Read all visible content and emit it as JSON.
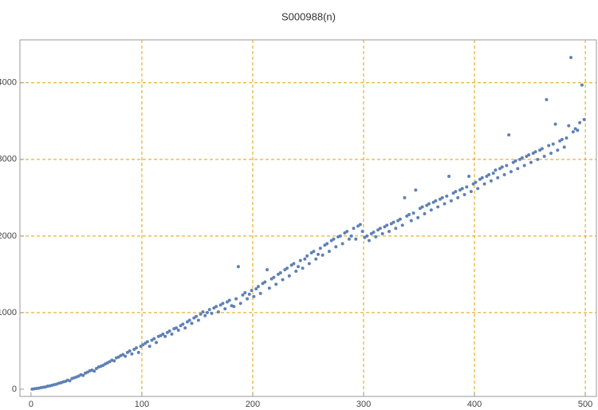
{
  "chart_data": {
    "type": "scatter",
    "title": "S000988(n)",
    "color": "#5e81b5",
    "grid": true,
    "grid_color": "#e69f00",
    "xlim": [
      -10,
      510
    ],
    "ylim": [
      -94,
      4560
    ],
    "xticks": [
      0,
      100,
      200,
      300,
      400,
      500
    ],
    "yticks": [
      0,
      1000,
      2000,
      3000,
      4000
    ],
    "x": [
      1,
      3,
      5,
      7,
      9,
      11,
      13,
      15,
      17,
      19,
      21,
      23,
      25,
      27,
      29,
      31,
      33,
      35,
      37,
      39,
      41,
      43,
      45,
      47,
      49,
      51,
      53,
      55,
      57,
      59,
      61,
      63,
      65,
      67,
      69,
      71,
      73,
      75,
      77,
      79,
      81,
      83,
      85,
      87,
      89,
      91,
      93,
      95,
      97,
      99,
      101,
      103,
      105,
      107,
      109,
      111,
      113,
      115,
      117,
      119,
      121,
      123,
      125,
      127,
      129,
      131,
      133,
      135,
      137,
      139,
      141,
      143,
      145,
      147,
      149,
      151,
      153,
      155,
      157,
      159,
      161,
      163,
      165,
      167,
      169,
      171,
      173,
      175,
      177,
      179,
      181,
      183,
      185,
      187,
      189,
      191,
      193,
      195,
      197,
      199,
      201,
      203,
      205,
      207,
      209,
      211,
      213,
      215,
      217,
      219,
      221,
      223,
      225,
      227,
      229,
      231,
      233,
      235,
      237,
      239,
      241,
      243,
      245,
      247,
      249,
      251,
      253,
      255,
      257,
      259,
      261,
      263,
      265,
      267,
      269,
      271,
      273,
      275,
      277,
      279,
      281,
      283,
      285,
      287,
      289,
      291,
      293,
      295,
      297,
      299,
      301,
      303,
      305,
      307,
      309,
      311,
      313,
      315,
      317,
      319,
      321,
      323,
      325,
      327,
      329,
      331,
      333,
      335,
      337,
      339,
      341,
      343,
      345,
      347,
      349,
      351,
      353,
      355,
      357,
      359,
      361,
      363,
      365,
      367,
      369,
      371,
      373,
      375,
      377,
      379,
      381,
      383,
      385,
      387,
      389,
      391,
      393,
      395,
      397,
      399,
      401,
      403,
      405,
      407,
      409,
      411,
      413,
      415,
      417,
      419,
      421,
      423,
      425,
      427,
      429,
      431,
      433,
      435,
      437,
      439,
      441,
      443,
      445,
      447,
      449,
      451,
      453,
      455,
      457,
      459,
      461,
      463,
      465,
      467,
      469,
      471,
      473,
      475,
      477,
      479,
      481,
      483,
      485,
      487,
      489,
      491,
      493,
      495,
      497,
      499
    ],
    "values": [
      1,
      6,
      10,
      14,
      20,
      26,
      30,
      40,
      44,
      52,
      60,
      66,
      78,
      84,
      96,
      102,
      118,
      110,
      140,
      150,
      160,
      172,
      190,
      180,
      210,
      222,
      240,
      250,
      236,
      270,
      290,
      300,
      312,
      330,
      344,
      360,
      380,
      370,
      410,
      420,
      440,
      452,
      430,
      480,
      500,
      460,
      520,
      540,
      480,
      560,
      580,
      600,
      620,
      560,
      640,
      660,
      610,
      690,
      700,
      720,
      690,
      740,
      760,
      720,
      790,
      800,
      770,
      830,
      850,
      800,
      880,
      900,
      860,
      930,
      950,
      900,
      980,
      1010,
      960,
      1000,
      1040,
      990,
      1060,
      1080,
      1010,
      1100,
      1120,
      1050,
      1140,
      1160,
      1090,
      1080,
      1180,
      1600,
      1120,
      1230,
      1260,
      1180,
      1240,
      1290,
      1210,
      1310,
      1340,
      1250,
      1380,
      1400,
      1560,
      1320,
      1440,
      1460,
      1370,
      1500,
      1520,
      1430,
      1560,
      1580,
      1480,
      1620,
      1640,
      1540,
      1600,
      1680,
      1580,
      1700,
      1740,
      1640,
      1780,
      1800,
      1700,
      1760,
      1840,
      1750,
      1880,
      1900,
      1800,
      1940,
      1960,
      1860,
      1990,
      2000,
      1900,
      2040,
      2060,
      1960,
      2000,
      2100,
      1960,
      2130,
      2150,
      2060,
      1980,
      2000,
      1940,
      2030,
      2050,
      1990,
      2080,
      2100,
      2030,
      2120,
      2140,
      2060,
      2160,
      2180,
      2100,
      2200,
      2220,
      2140,
      2500,
      2260,
      2280,
      2200,
      2300,
      2600,
      2240,
      2360,
      2380,
      2290,
      2400,
      2420,
      2340,
      2440,
      2460,
      2380,
      2480,
      2500,
      2420,
      2520,
      2780,
      2460,
      2560,
      2580,
      2500,
      2600,
      2620,
      2540,
      2640,
      2780,
      2580,
      2680,
      2700,
      2620,
      2740,
      2760,
      2680,
      2780,
      2800,
      2720,
      2820,
      2860,
      2760,
      2880,
      2900,
      2800,
      2920,
      3320,
      2840,
      2960,
      2980,
      2880,
      3000,
      3020,
      2920,
      3040,
      3060,
      2960,
      3080,
      3100,
      3000,
      3120,
      3140,
      3040,
      3780,
      3180,
      3080,
      3200,
      3460,
      3120,
      3240,
      3260,
      3160,
      3280,
      3440,
      4330,
      3360,
      3400,
      3380,
      3480,
      3970,
      3520
    ]
  }
}
